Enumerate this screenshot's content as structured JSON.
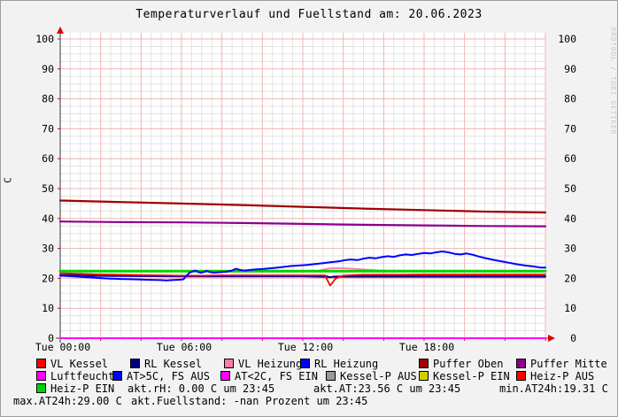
{
  "chart_data": {
    "type": "line",
    "title": "Temperaturverlauf und Fuellstand am: 20.06.2023",
    "ylabel": "C",
    "xlabel": "",
    "ylim": [
      0,
      100
    ],
    "y_tick_step": 10,
    "x_range_hours": [
      0,
      24
    ],
    "grid": "on",
    "legend_position": "bottom",
    "x_ticks": [
      {
        "hour": 0,
        "label": "Tue 00:00"
      },
      {
        "hour": 6,
        "label": "Tue 06:00"
      },
      {
        "hour": 12,
        "label": "Tue 12:00"
      },
      {
        "hour": 18,
        "label": "Tue 18:00"
      }
    ],
    "series": [
      {
        "name": "Luftfeuchte",
        "color": "#ff00ff",
        "width": 2,
        "points": [
          [
            0,
            0
          ],
          [
            24,
            0
          ]
        ]
      },
      {
        "name": "RL Heizung",
        "color": "#0000ff",
        "width": 1.8,
        "points": [
          [
            0,
            20.9
          ],
          [
            2,
            20.8
          ],
          [
            4,
            20.7
          ],
          [
            6,
            20.6
          ],
          [
            8,
            20.6
          ],
          [
            10,
            20.6
          ],
          [
            12,
            20.6
          ],
          [
            13.3,
            20.4
          ],
          [
            14,
            20.5
          ],
          [
            16,
            20.5
          ],
          [
            18,
            20.5
          ],
          [
            20,
            20.5
          ],
          [
            22,
            20.5
          ],
          [
            24,
            20.5
          ]
        ]
      },
      {
        "name": "RL Kessel",
        "color": "#000080",
        "width": 1.8,
        "points": [
          [
            0,
            21.1
          ],
          [
            1,
            21.0
          ],
          [
            2,
            20.9
          ],
          [
            3,
            20.9
          ],
          [
            4,
            20.8
          ],
          [
            6,
            20.8
          ],
          [
            8,
            20.8
          ],
          [
            10,
            20.8
          ],
          [
            12,
            20.8
          ],
          [
            13.2,
            20.7
          ],
          [
            13.35,
            20.3
          ],
          [
            13.5,
            20.6
          ],
          [
            14,
            20.7
          ],
          [
            16,
            20.7
          ],
          [
            18,
            20.7
          ],
          [
            20,
            20.7
          ],
          [
            22,
            20.7
          ],
          [
            24,
            20.7
          ]
        ]
      },
      {
        "name": "VL Heizung",
        "color": "#ff7bac",
        "width": 1.8,
        "points": [
          [
            0,
            22.4
          ],
          [
            6,
            22.4
          ],
          [
            12,
            22.4
          ],
          [
            12.7,
            22.4
          ],
          [
            13,
            22.9
          ],
          [
            13.3,
            23.3
          ],
          [
            13.7,
            23.4
          ],
          [
            14.2,
            23.3
          ],
          [
            14.7,
            23.1
          ],
          [
            15.2,
            22.9
          ],
          [
            15.7,
            22.7
          ],
          [
            16.2,
            22.6
          ],
          [
            17,
            22.5
          ],
          [
            18,
            22.5
          ],
          [
            20,
            22.4
          ],
          [
            22,
            22.4
          ],
          [
            24,
            22.4
          ]
        ]
      },
      {
        "name": "Heiz-P EIN",
        "color": "#00d400",
        "width": 3,
        "points": [
          [
            0,
            22.4
          ],
          [
            24,
            22.4
          ]
        ]
      },
      {
        "name": "Kessel-P AUS",
        "color": "#9a9a9a",
        "width": 1.8,
        "points": []
      },
      {
        "name": "Kessel-P EIN",
        "color": "#d0d000",
        "width": 1.8,
        "points": []
      },
      {
        "name": "Heiz-P AUS",
        "color": "#ff0000",
        "width": 1.8,
        "points": []
      },
      {
        "name": "AT<2C, FS EIN",
        "color": "#ff00ff",
        "width": 1.8,
        "points": []
      },
      {
        "name": "VL Kessel",
        "color": "#ff0000",
        "width": 1.8,
        "points": [
          [
            0,
            21.7
          ],
          [
            1,
            21.5
          ],
          [
            2,
            21.3
          ],
          [
            3,
            21.2
          ],
          [
            4,
            21.1
          ],
          [
            5,
            21.0
          ],
          [
            6,
            20.9
          ],
          [
            7,
            20.9
          ],
          [
            8,
            21.0
          ],
          [
            10,
            21.0
          ],
          [
            12,
            21.0
          ],
          [
            13.1,
            21.0
          ],
          [
            13.25,
            19.0
          ],
          [
            13.35,
            17.6
          ],
          [
            13.45,
            18.4
          ],
          [
            13.6,
            19.8
          ],
          [
            13.8,
            20.5
          ],
          [
            14,
            20.9
          ],
          [
            14.5,
            21.1
          ],
          [
            15,
            21.2
          ],
          [
            16,
            21.2
          ],
          [
            17,
            21.2
          ],
          [
            18,
            21.3
          ],
          [
            20,
            21.3
          ],
          [
            22,
            21.3
          ],
          [
            24,
            21.3
          ]
        ]
      },
      {
        "name": "AT>5C, FS AUS",
        "color": "#0000ff",
        "width": 2,
        "points": [
          [
            0,
            20.9
          ],
          [
            0.5,
            20.7
          ],
          [
            1,
            20.5
          ],
          [
            1.5,
            20.3
          ],
          [
            2,
            20.1
          ],
          [
            2.5,
            19.9
          ],
          [
            3,
            19.8
          ],
          [
            3.5,
            19.7
          ],
          [
            4,
            19.6
          ],
          [
            4.5,
            19.5
          ],
          [
            5,
            19.4
          ],
          [
            5.25,
            19.3
          ],
          [
            5.5,
            19.4
          ],
          [
            5.75,
            19.5
          ],
          [
            6,
            19.6
          ],
          [
            6.1,
            19.7
          ],
          [
            6.25,
            20.9
          ],
          [
            6.4,
            21.9
          ],
          [
            6.55,
            22.3
          ],
          [
            6.7,
            22.6
          ],
          [
            6.8,
            22.2
          ],
          [
            6.95,
            21.9
          ],
          [
            7.1,
            22.1
          ],
          [
            7.25,
            22.5
          ],
          [
            7.4,
            22.1
          ],
          [
            7.6,
            21.9
          ],
          [
            7.8,
            22.0
          ],
          [
            8,
            22.1
          ],
          [
            8.2,
            22.2
          ],
          [
            8.5,
            22.6
          ],
          [
            8.7,
            23.2
          ],
          [
            8.9,
            22.8
          ],
          [
            9.1,
            22.6
          ],
          [
            9.4,
            22.8
          ],
          [
            9.7,
            23.0
          ],
          [
            10,
            23.1
          ],
          [
            10.3,
            23.3
          ],
          [
            10.6,
            23.5
          ],
          [
            11,
            23.8
          ],
          [
            11.4,
            24.1
          ],
          [
            11.8,
            24.3
          ],
          [
            12.2,
            24.5
          ],
          [
            12.6,
            24.8
          ],
          [
            13,
            25.1
          ],
          [
            13.4,
            25.4
          ],
          [
            13.8,
            25.7
          ],
          [
            14.1,
            26.1
          ],
          [
            14.4,
            26.3
          ],
          [
            14.7,
            26.1
          ],
          [
            15,
            26.6
          ],
          [
            15.3,
            26.9
          ],
          [
            15.6,
            26.7
          ],
          [
            15.9,
            27.1
          ],
          [
            16.2,
            27.4
          ],
          [
            16.5,
            27.2
          ],
          [
            16.8,
            27.7
          ],
          [
            17.1,
            28.0
          ],
          [
            17.4,
            27.8
          ],
          [
            17.7,
            28.2
          ],
          [
            18,
            28.5
          ],
          [
            18.3,
            28.3
          ],
          [
            18.6,
            28.7
          ],
          [
            18.9,
            29.0
          ],
          [
            19.2,
            28.7
          ],
          [
            19.5,
            28.2
          ],
          [
            19.8,
            28.0
          ],
          [
            20.1,
            28.3
          ],
          [
            20.4,
            27.9
          ],
          [
            20.7,
            27.3
          ],
          [
            21,
            26.8
          ],
          [
            21.4,
            26.2
          ],
          [
            21.8,
            25.7
          ],
          [
            22.2,
            25.2
          ],
          [
            22.6,
            24.7
          ],
          [
            23,
            24.3
          ],
          [
            23.4,
            24.0
          ],
          [
            23.75,
            23.6
          ],
          [
            24,
            23.6
          ]
        ]
      },
      {
        "name": "Puffer Oben",
        "color": "#a00000",
        "width": 2.2,
        "points": [
          [
            0,
            46.0
          ],
          [
            3,
            45.5
          ],
          [
            6,
            45.0
          ],
          [
            9,
            44.5
          ],
          [
            12,
            43.9
          ],
          [
            15,
            43.3
          ],
          [
            18,
            42.8
          ],
          [
            21,
            42.3
          ],
          [
            24,
            42.0
          ]
        ]
      },
      {
        "name": "Puffer Mitte",
        "color": "#8b008b",
        "width": 2.2,
        "points": [
          [
            0,
            39.0
          ],
          [
            3,
            38.8
          ],
          [
            6,
            38.7
          ],
          [
            9,
            38.5
          ],
          [
            12,
            38.2
          ],
          [
            15,
            37.9
          ],
          [
            18,
            37.7
          ],
          [
            21,
            37.5
          ],
          [
            24,
            37.4
          ]
        ]
      }
    ]
  },
  "watermark": "RRDTOOL / TOBI OETIKER",
  "colors": {
    "grid_major": "#f0b4b4",
    "grid_minor": "#e3e3e3",
    "axis": "#3a3a3a",
    "arrow": "#dd0000",
    "watermark": "#c8c8c8"
  },
  "legend": {
    "items": [
      {
        "label": "VL Kessel",
        "color": "#ff0000"
      },
      {
        "label": "RL Kessel",
        "color": "#000080"
      },
      {
        "label": "VL Heizung",
        "color": "#ff7bac"
      },
      {
        "label": "RL Heizung",
        "color": "#0000ff"
      },
      {
        "label": "Puffer Oben",
        "color": "#a00000"
      },
      {
        "label": "Puffer Mitte",
        "color": "#8b008b"
      },
      {
        "label": "Luftfeuchte",
        "color": "#ff00ff"
      },
      {
        "label": "AT>5C, FS AUS",
        "color": "#0000ff"
      },
      {
        "label": "AT<2C, FS EIN",
        "color": "#ff00ff"
      },
      {
        "label": "Kessel-P AUS",
        "color": "#9a9a9a"
      },
      {
        "label": "Kessel-P EIN",
        "color": "#d0d000"
      },
      {
        "label": "Heiz-P AUS",
        "color": "#ff0000"
      },
      {
        "label": "Heiz-P EIN",
        "color": "#00d400"
      }
    ],
    "texts": [
      {
        "text": "akt.rH: 0.00 C um 23:45"
      },
      {
        "text": "akt.AT:23.56 C um 23:45"
      },
      {
        "text": "min.AT24h:19.31 C"
      },
      {
        "text": "max.AT24h:29.00 C"
      },
      {
        "text": "akt.Fuellstand: -nan Prozent um 23:45"
      }
    ]
  }
}
